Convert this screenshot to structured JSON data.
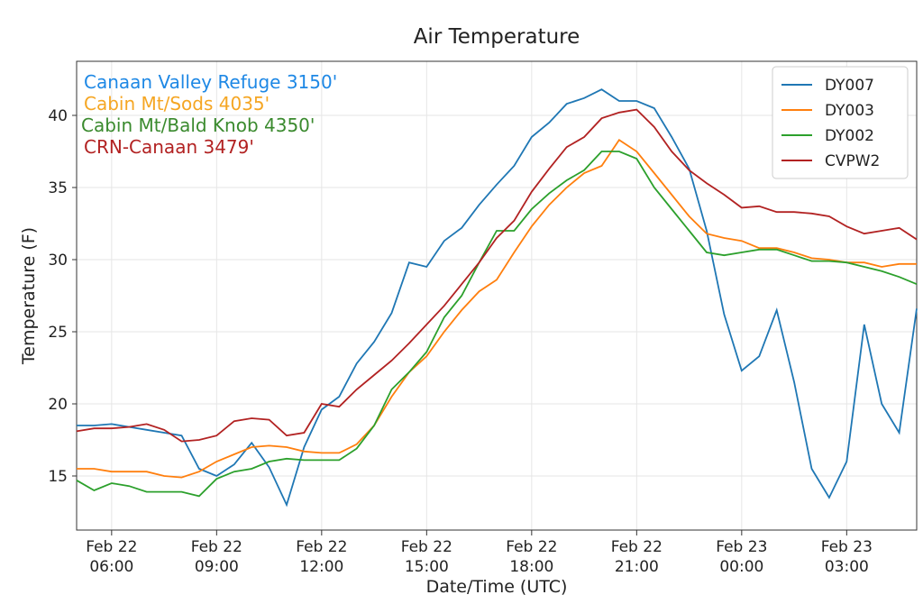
{
  "chart_data": {
    "type": "line",
    "title": "Air Temperature",
    "xlabel": "Date/Time (UTC)",
    "ylabel": "Temperature (F)",
    "x": [
      "Feb 22 05:00",
      "Feb 22 05:30",
      "Feb 22 06:00",
      "Feb 22 06:30",
      "Feb 22 07:00",
      "Feb 22 07:30",
      "Feb 22 08:00",
      "Feb 22 08:30",
      "Feb 22 09:00",
      "Feb 22 09:30",
      "Feb 22 10:00",
      "Feb 22 10:30",
      "Feb 22 11:00",
      "Feb 22 11:30",
      "Feb 22 12:00",
      "Feb 22 12:30",
      "Feb 22 13:00",
      "Feb 22 13:30",
      "Feb 22 14:00",
      "Feb 22 14:30",
      "Feb 22 15:00",
      "Feb 22 15:30",
      "Feb 22 16:00",
      "Feb 22 16:30",
      "Feb 22 17:00",
      "Feb 22 17:30",
      "Feb 22 18:00",
      "Feb 22 18:30",
      "Feb 22 19:00",
      "Feb 22 19:30",
      "Feb 22 20:00",
      "Feb 22 20:30",
      "Feb 22 21:00",
      "Feb 22 21:30",
      "Feb 22 22:00",
      "Feb 22 22:30",
      "Feb 22 23:00",
      "Feb 22 23:30",
      "Feb 23 00:00",
      "Feb 23 00:30",
      "Feb 23 01:00",
      "Feb 23 01:30",
      "Feb 23 02:00",
      "Feb 23 02:30",
      "Feb 23 03:00",
      "Feb 23 03:30",
      "Feb 23 04:00",
      "Feb 23 04:30",
      "Feb 23 05:00"
    ],
    "series": [
      {
        "name": "DY007",
        "color": "#1f77b4",
        "values": [
          18.5,
          18.5,
          18.6,
          18.4,
          18.2,
          18.0,
          17.8,
          15.5,
          15.0,
          15.8,
          17.3,
          15.6,
          13.0,
          17.0,
          19.6,
          20.5,
          22.8,
          24.3,
          26.3,
          29.8,
          29.5,
          31.3,
          32.2,
          33.8,
          35.2,
          36.5,
          38.5,
          39.5,
          40.8,
          41.2,
          41.8,
          41.0,
          41.0,
          40.5,
          38.5,
          36.3,
          32.0,
          26.2,
          22.3,
          23.3,
          26.5,
          21.5,
          15.5,
          13.5,
          16.0,
          25.5,
          20.0,
          18.0,
          26.6
        ]
      },
      {
        "name": "DY003",
        "color": "#ff7f0e",
        "values": [
          15.5,
          15.5,
          15.3,
          15.3,
          15.3,
          15.0,
          14.9,
          15.3,
          16.0,
          16.5,
          17.0,
          17.1,
          17.0,
          16.7,
          16.6,
          16.6,
          17.2,
          18.5,
          20.5,
          22.2,
          23.3,
          25.0,
          26.5,
          27.8,
          28.6,
          30.5,
          32.3,
          33.8,
          35.0,
          36.0,
          36.5,
          38.3,
          37.5,
          36.0,
          34.5,
          33.0,
          31.8,
          31.5,
          31.3,
          30.8,
          30.8,
          30.5,
          30.1,
          30.0,
          29.8,
          29.8,
          29.5,
          29.7,
          29.7
        ]
      },
      {
        "name": "DY002",
        "color": "#2ca02c",
        "values": [
          14.7,
          14.0,
          14.5,
          14.3,
          13.9,
          13.9,
          13.9,
          13.6,
          14.8,
          15.3,
          15.5,
          16.0,
          16.2,
          16.1,
          16.1,
          16.1,
          16.9,
          18.5,
          21.0,
          22.2,
          23.6,
          26.0,
          27.5,
          29.8,
          32.0,
          32.0,
          33.5,
          34.6,
          35.5,
          36.2,
          37.5,
          37.5,
          37.0,
          35.0,
          33.5,
          32.0,
          30.5,
          30.3,
          30.5,
          30.7,
          30.7,
          30.3,
          29.9,
          29.9,
          29.8,
          29.5,
          29.2,
          28.8,
          28.3
        ]
      },
      {
        "name": "CVPW2",
        "color": "#b22222",
        "values": [
          18.1,
          18.3,
          18.3,
          18.4,
          18.6,
          18.2,
          17.4,
          17.5,
          17.8,
          18.8,
          19.0,
          18.9,
          17.8,
          18.0,
          20.0,
          19.8,
          21.0,
          22.0,
          23.0,
          24.2,
          25.5,
          26.8,
          28.3,
          29.8,
          31.5,
          32.7,
          34.7,
          36.3,
          37.8,
          38.5,
          39.8,
          40.2,
          40.4,
          39.2,
          37.5,
          36.2,
          35.3,
          34.5,
          33.6,
          33.7,
          33.3,
          33.3,
          33.2,
          33.0,
          32.3,
          31.8,
          32.0,
          32.2,
          31.4
        ]
      }
    ],
    "annotations": [
      {
        "text": "Canaan Valley Refuge 3150'",
        "color": "#1e88e5"
      },
      {
        "text": "Cabin Mt/Sods 4035'",
        "color": "#f5a623"
      },
      {
        "text": "Cabin Mt/Bald Knob 4350'",
        "color": "#3a8a2e"
      },
      {
        "text": "CRN-Canaan 3479'",
        "color": "#b22222"
      }
    ],
    "xlim": [
      "Feb 22 05:00",
      "Feb 23 05:00"
    ],
    "xticks": [
      "Feb 22 06:00",
      "Feb 22 09:00",
      "Feb 22 12:00",
      "Feb 22 15:00",
      "Feb 22 18:00",
      "Feb 22 21:00",
      "Feb 23 00:00",
      "Feb 23 03:00"
    ],
    "ylim": [
      11.25,
      43.75
    ],
    "yticks": [
      15,
      20,
      25,
      30,
      35,
      40
    ],
    "grid": true,
    "legend": "upper right"
  }
}
